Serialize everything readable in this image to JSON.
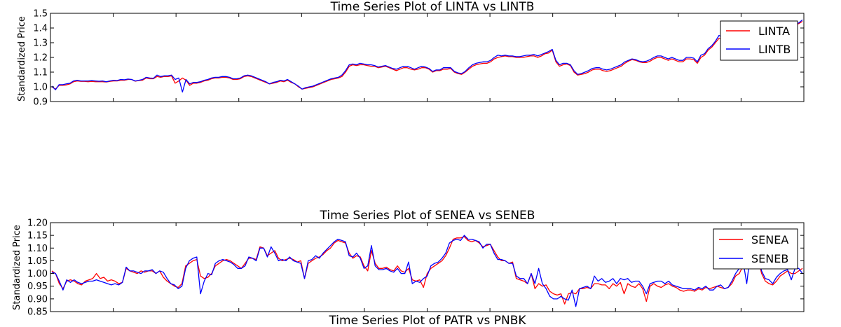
{
  "chart_data": [
    {
      "type": "line",
      "title": "Time Series Plot of LINTA vs LINTB",
      "xlabel": "",
      "ylabel": "Standardized Price",
      "ylim": [
        0.9,
        1.5
      ],
      "yticks": [
        "0.9",
        "1.0",
        "1.1",
        "1.2",
        "1.3",
        "1.4",
        "1.5"
      ],
      "grid": false,
      "legend": "top-right",
      "series": [
        {
          "name": "LINTA",
          "color": "#ff0000",
          "values": [
            1.0,
            0.985,
            1.01,
            1.01,
            1.013,
            1.02,
            1.035,
            1.04,
            1.037,
            1.037,
            1.035,
            1.037,
            1.035,
            1.035,
            1.035,
            1.033,
            1.037,
            1.04,
            1.04,
            1.045,
            1.045,
            1.05,
            1.05,
            1.038,
            1.043,
            1.045,
            1.06,
            1.055,
            1.055,
            1.07,
            1.065,
            1.07,
            1.07,
            1.075,
            1.025,
            1.04,
            1.06,
            1.045,
            1.01,
            1.025,
            1.025,
            1.03,
            1.04,
            1.045,
            1.055,
            1.06,
            1.06,
            1.065,
            1.065,
            1.06,
            1.05,
            1.05,
            1.055,
            1.07,
            1.075,
            1.07,
            1.06,
            1.05,
            1.04,
            1.03,
            1.02,
            1.025,
            1.03,
            1.04,
            1.035,
            1.045,
            1.03,
            1.02,
            1.0,
            0.985,
            0.99,
            0.995,
            1.0,
            1.01,
            1.02,
            1.03,
            1.04,
            1.05,
            1.055,
            1.06,
            1.07,
            1.1,
            1.14,
            1.15,
            1.145,
            1.15,
            1.15,
            1.145,
            1.14,
            1.14,
            1.13,
            1.135,
            1.14,
            1.13,
            1.12,
            1.11,
            1.12,
            1.13,
            1.13,
            1.12,
            1.115,
            1.12,
            1.13,
            1.13,
            1.12,
            1.1,
            1.11,
            1.11,
            1.12,
            1.12,
            1.125,
            1.1,
            1.09,
            1.085,
            1.1,
            1.12,
            1.14,
            1.15,
            1.155,
            1.16,
            1.16,
            1.17,
            1.19,
            1.2,
            1.205,
            1.21,
            1.205,
            1.205,
            1.2,
            1.2,
            1.2,
            1.205,
            1.21,
            1.21,
            1.2,
            1.21,
            1.225,
            1.23,
            1.25,
            1.17,
            1.14,
            1.15,
            1.155,
            1.145,
            1.1,
            1.08,
            1.085,
            1.09,
            1.1,
            1.115,
            1.12,
            1.12,
            1.11,
            1.105,
            1.11,
            1.12,
            1.13,
            1.14,
            1.16,
            1.175,
            1.185,
            1.18,
            1.17,
            1.165,
            1.165,
            1.175,
            1.19,
            1.2,
            1.2,
            1.19,
            1.18,
            1.19,
            1.18,
            1.17,
            1.17,
            1.19,
            1.19,
            1.185,
            1.16,
            1.2,
            1.215,
            1.25,
            1.27,
            1.3,
            1.33,
            1.325,
            1.315,
            1.31,
            1.32,
            1.325,
            1.33,
            1.335,
            1.34,
            1.36,
            1.35,
            1.365,
            1.37,
            1.38,
            1.39,
            1.38,
            1.37,
            1.36,
            1.38,
            1.39,
            1.41,
            1.42,
            1.43,
            1.445
          ]
        },
        {
          "name": "LINTB",
          "color": "#0000ff",
          "values": [
            1.005,
            0.98,
            1.015,
            1.015,
            1.02,
            1.025,
            1.04,
            1.045,
            1.04,
            1.04,
            1.04,
            1.042,
            1.04,
            1.038,
            1.04,
            1.035,
            1.04,
            1.045,
            1.043,
            1.05,
            1.048,
            1.053,
            1.05,
            1.04,
            1.045,
            1.05,
            1.065,
            1.06,
            1.058,
            1.08,
            1.07,
            1.075,
            1.075,
            1.08,
            1.05,
            1.06,
            0.965,
            1.05,
            1.02,
            1.03,
            1.03,
            1.035,
            1.045,
            1.05,
            1.06,
            1.065,
            1.065,
            1.07,
            1.07,
            1.065,
            1.055,
            1.055,
            1.06,
            1.075,
            1.08,
            1.075,
            1.065,
            1.055,
            1.045,
            1.035,
            1.02,
            1.03,
            1.035,
            1.045,
            1.04,
            1.05,
            1.035,
            1.02,
            1.005,
            0.985,
            0.995,
            1.0,
            1.005,
            1.015,
            1.025,
            1.035,
            1.045,
            1.055,
            1.06,
            1.065,
            1.08,
            1.11,
            1.15,
            1.155,
            1.15,
            1.16,
            1.155,
            1.15,
            1.15,
            1.145,
            1.135,
            1.14,
            1.145,
            1.135,
            1.125,
            1.12,
            1.13,
            1.14,
            1.14,
            1.13,
            1.12,
            1.13,
            1.14,
            1.135,
            1.125,
            1.105,
            1.115,
            1.115,
            1.13,
            1.13,
            1.13,
            1.105,
            1.095,
            1.09,
            1.105,
            1.13,
            1.15,
            1.16,
            1.165,
            1.17,
            1.17,
            1.18,
            1.2,
            1.215,
            1.21,
            1.215,
            1.21,
            1.21,
            1.205,
            1.205,
            1.21,
            1.215,
            1.215,
            1.22,
            1.21,
            1.22,
            1.23,
            1.24,
            1.255,
            1.18,
            1.15,
            1.16,
            1.16,
            1.15,
            1.11,
            1.085,
            1.09,
            1.1,
            1.11,
            1.125,
            1.13,
            1.13,
            1.12,
            1.115,
            1.12,
            1.13,
            1.14,
            1.15,
            1.17,
            1.18,
            1.19,
            1.185,
            1.175,
            1.17,
            1.175,
            1.185,
            1.2,
            1.21,
            1.21,
            1.2,
            1.19,
            1.2,
            1.19,
            1.18,
            1.18,
            1.2,
            1.2,
            1.195,
            1.17,
            1.215,
            1.225,
            1.26,
            1.28,
            1.31,
            1.35,
            1.335,
            1.325,
            1.33,
            1.335,
            1.34,
            1.345,
            1.34,
            1.35,
            1.385,
            1.36,
            1.38,
            1.38,
            1.39,
            1.4,
            1.39,
            1.39,
            1.38,
            1.39,
            1.4,
            1.415,
            1.425,
            1.435,
            1.455
          ]
        }
      ]
    },
    {
      "type": "line",
      "title": "Time Series Plot of SENEA vs SENEB",
      "xlabel": "",
      "ylabel": "Standardized Price",
      "ylim": [
        0.85,
        1.2
      ],
      "yticks": [
        "0.85",
        "0.90",
        "0.95",
        "1.00",
        "1.05",
        "1.10",
        "1.15",
        "1.20"
      ],
      "grid": false,
      "legend": "top-right",
      "series": [
        {
          "name": "SENEA",
          "color": "#ff0000",
          "values": [
            1.01,
            1.0,
            0.96,
            0.94,
            0.97,
            0.975,
            0.97,
            0.96,
            0.955,
            0.97,
            0.975,
            0.98,
            1.0,
            0.98,
            0.985,
            0.97,
            0.975,
            0.97,
            0.96,
            0.965,
            1.02,
            1.01,
            1.005,
            1.0,
            1.01,
            1.005,
            1.01,
            1.01,
            1.0,
            1.01,
            0.985,
            0.97,
            0.96,
            0.95,
            0.945,
            0.96,
            1.03,
            1.04,
            1.05,
            1.055,
            0.99,
            0.98,
            0.985,
            1.0,
            1.03,
            1.04,
            1.05,
            1.055,
            1.05,
            1.04,
            1.03,
            1.02,
            1.04,
            1.06,
            1.06,
            1.055,
            1.105,
            1.1,
            1.07,
            1.08,
            1.09,
            1.06,
            1.05,
            1.055,
            1.06,
            1.055,
            1.045,
            1.05,
            0.98,
            1.04,
            1.05,
            1.06,
            1.065,
            1.075,
            1.09,
            1.1,
            1.12,
            1.13,
            1.125,
            1.12,
            1.08,
            1.06,
            1.07,
            1.065,
            1.03,
            1.01,
            1.09,
            1.04,
            1.02,
            1.02,
            1.025,
            1.015,
            1.01,
            1.03,
            1.01,
            1.005,
            1.02,
            0.975,
            0.97,
            0.975,
            0.945,
            1.0,
            1.02,
            1.03,
            1.04,
            1.05,
            1.07,
            1.1,
            1.135,
            1.14,
            1.14,
            1.145,
            1.13,
            1.125,
            1.13,
            1.12,
            1.105,
            1.11,
            1.115,
            1.09,
            1.065,
            1.05,
            1.05,
            1.04,
            1.045,
            0.98,
            0.975,
            0.97,
            0.96,
            1.0,
            0.94,
            0.96,
            0.95,
            0.955,
            0.93,
            0.92,
            0.915,
            0.92,
            0.88,
            0.92,
            0.925,
            0.92,
            0.94,
            0.94,
            0.945,
            0.94,
            0.96,
            0.96,
            0.955,
            0.955,
            0.94,
            0.96,
            0.95,
            0.965,
            0.92,
            0.96,
            0.95,
            0.945,
            0.96,
            0.94,
            0.89,
            0.95,
            0.96,
            0.95,
            0.945,
            0.955,
            0.96,
            0.95,
            0.945,
            0.935,
            0.93,
            0.935,
            0.935,
            0.93,
            0.94,
            0.935,
            0.945,
            0.94,
            0.945,
            0.95,
            0.945,
            0.94,
            0.945,
            0.96,
            0.99,
            1.0,
            1.03,
            1.05,
            1.06,
            1.06,
            1.06,
            1.0,
            0.97,
            0.96,
            0.955,
            0.97,
            0.99,
            1.0,
            1.01,
            1.0,
            1.0,
            1.01,
            1.02
          ]
        },
        {
          "name": "SENEB",
          "color": "#0000ff",
          "values": [
            1.005,
            1.0,
            0.97,
            0.935,
            0.975,
            0.965,
            0.975,
            0.965,
            0.96,
            0.965,
            0.97,
            0.97,
            0.975,
            0.97,
            0.965,
            0.96,
            0.955,
            0.96,
            0.955,
            0.965,
            1.025,
            1.01,
            1.01,
            1.005,
            1.0,
            1.01,
            1.01,
            1.015,
            1.0,
            1.01,
            1.005,
            0.98,
            0.96,
            0.955,
            0.94,
            0.95,
            1.02,
            1.05,
            1.06,
            1.065,
            0.92,
            0.97,
            1.0,
            0.995,
            1.04,
            1.05,
            1.055,
            1.05,
            1.045,
            1.035,
            1.02,
            1.02,
            1.03,
            1.065,
            1.06,
            1.05,
            1.1,
            1.1,
            1.065,
            1.105,
            1.08,
            1.05,
            1.055,
            1.05,
            1.065,
            1.05,
            1.045,
            1.04,
            0.98,
            1.05,
            1.055,
            1.07,
            1.06,
            1.08,
            1.095,
            1.11,
            1.125,
            1.135,
            1.13,
            1.125,
            1.07,
            1.065,
            1.08,
            1.06,
            1.02,
            1.03,
            1.11,
            1.03,
            1.015,
            1.015,
            1.02,
            1.01,
            1.005,
            1.02,
            1.0,
            1.0,
            1.045,
            0.96,
            0.97,
            0.965,
            0.98,
            0.99,
            1.03,
            1.04,
            1.045,
            1.06,
            1.08,
            1.12,
            1.13,
            1.135,
            1.13,
            1.15,
            1.135,
            1.135,
            1.13,
            1.125,
            1.1,
            1.115,
            1.115,
            1.08,
            1.055,
            1.055,
            1.05,
            1.04,
            1.04,
            0.99,
            0.98,
            0.98,
            0.96,
            1.0,
            0.96,
            1.02,
            0.96,
            0.94,
            0.91,
            0.9,
            0.9,
            0.91,
            0.9,
            0.895,
            0.935,
            0.87,
            0.94,
            0.945,
            0.95,
            0.94,
            0.99,
            0.97,
            0.98,
            0.965,
            0.97,
            0.98,
            0.96,
            0.98,
            0.975,
            0.98,
            0.965,
            0.97,
            0.97,
            0.95,
            0.92,
            0.96,
            0.965,
            0.97,
            0.97,
            0.96,
            0.97,
            0.955,
            0.95,
            0.945,
            0.94,
            0.94,
            0.94,
            0.935,
            0.945,
            0.94,
            0.95,
            0.935,
            0.935,
            0.95,
            0.955,
            0.94,
            0.945,
            0.97,
            1.0,
            1.02,
            1.05,
            0.96,
            1.08,
            1.06,
            1.07,
            1.01,
            0.98,
            0.975,
            0.96,
            0.985,
            1.0,
            1.01,
            1.015,
            0.975,
            1.02,
            1.02,
            1.0
          ]
        }
      ]
    },
    {
      "type": "line",
      "title": "Time Series Plot of PATR vs PNBK"
    }
  ]
}
